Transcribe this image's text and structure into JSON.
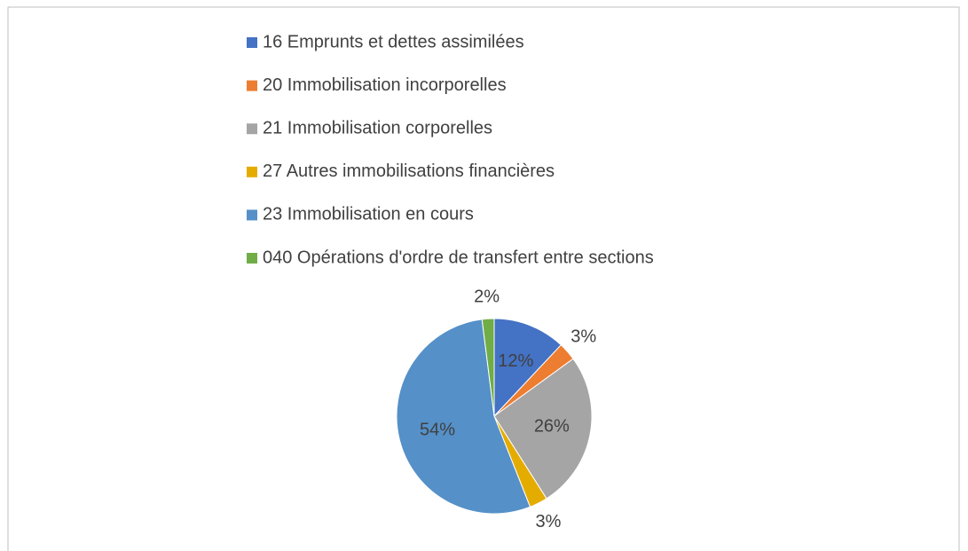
{
  "chart_data": {
    "type": "pie",
    "categories": [
      "16 Emprunts et dettes assimilées",
      "20 Immobilisation incorporelles",
      "21 Immobilisation corporelles",
      "27 Autres immobilisations financières",
      "23 Immobilisation en cours",
      "040 Opérations d'ordre de transfert entre sections"
    ],
    "values": [
      12,
      3,
      26,
      3,
      54,
      2
    ],
    "value_labels": [
      "12%",
      "3%",
      "26%",
      "3%",
      "54%",
      "2%"
    ],
    "colors": [
      "#4472c4",
      "#ed7d31",
      "#a5a5a5",
      "#e5ac00",
      "#5590c8",
      "#70ad47"
    ],
    "legend": "top"
  }
}
